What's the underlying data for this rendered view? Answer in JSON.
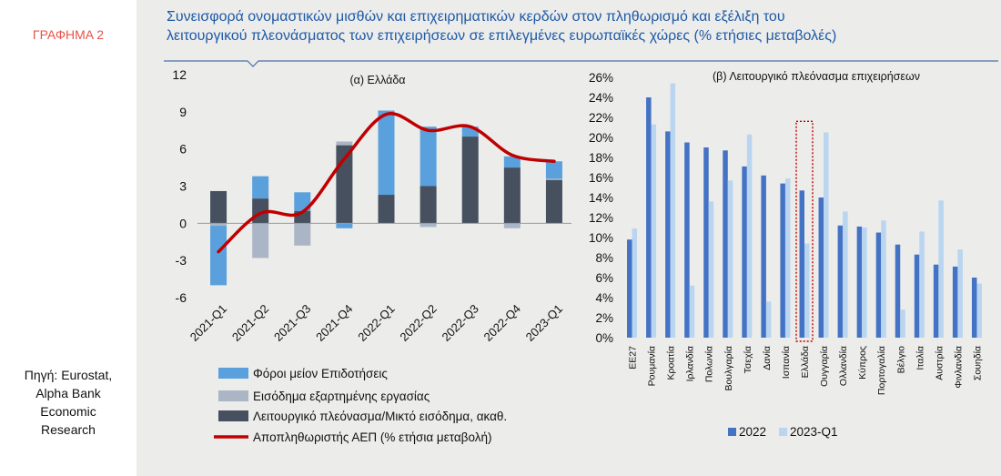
{
  "figure_label": "ΓΡΑΦΗΜΑ 2",
  "title_line1": "Συνεισφορά ονομαστικών μισθών και επιχειρηματικών κερδών στον πληθωρισμό και εξέλιξη του",
  "title_line2": "λειτουργικού πλεονάσματος των επιχειρήσεων σε επιλεγμένες ευρωπαϊκές χώρες (% ετήσιες μεταβολές)",
  "source_lines": [
    "Πηγή: Eurostat,",
    "Alpha Bank",
    "Economic",
    "Research"
  ],
  "colors": {
    "taxes": "#5aa0dc",
    "employee": "#aab6c6",
    "surplus": "#46505f",
    "deflator": "#c00000",
    "bar2022": "#4472c4",
    "bar2023": "#b9d5f0",
    "highlight": "#c00000",
    "title": "#1e5aa6",
    "label": "#e8534a"
  },
  "chart_data": [
    {
      "type": "bar",
      "title": "(α) Ελλάδα",
      "stacked": true,
      "categories": [
        "2021-Q1",
        "2021-Q2",
        "2021-Q3",
        "2021-Q4",
        "2022-Q1",
        "2022-Q2",
        "2022-Q3",
        "2022-Q4",
        "2023-Q1"
      ],
      "yticks": [
        "12",
        "9",
        "6",
        "3",
        "0",
        "-3",
        "-6"
      ],
      "ylim": [
        -6,
        12
      ],
      "series": [
        {
          "name": "Φόροι μείον Επιδοτήσεις",
          "kind": "bar",
          "values": [
            -4.8,
            1.8,
            1.5,
            0.0,
            6.8,
            4.8,
            0.8,
            0.9,
            1.4
          ]
        },
        {
          "name": "Εισόδημα εξαρτημένης εργασίας",
          "kind": "bar",
          "values": [
            -0.2,
            -2.8,
            -1.8,
            0.3,
            0.0,
            -0.3,
            0.0,
            -0.4,
            0.1
          ]
        },
        {
          "name": "Λειτουργικό πλεόνασμα/Μικτό εισόδημα, ακαθ.",
          "kind": "bar",
          "values": [
            2.6,
            2.0,
            1.0,
            6.3,
            2.3,
            3.0,
            7.0,
            4.5,
            3.5
          ],
          "extra": [
            0,
            0,
            0,
            0,
            0,
            0,
            0,
            0,
            0
          ]
        },
        {
          "name": "Αποπληθωριστής ΑΕΠ (% ετήσια μεταβολή)",
          "kind": "line",
          "values": [
            -2.3,
            0.8,
            0.9,
            5.2,
            8.8,
            7.5,
            7.8,
            5.5,
            5.0
          ]
        }
      ],
      "neg_surplus_q4": -0.4
    },
    {
      "type": "bar",
      "title": "(β) Λειτουργικό πλεόνασμα επιχειρήσεων",
      "categories": [
        "ΕΕ27",
        "Ρουμανία",
        "Κροατία",
        "Ιρλανδία",
        "Πολωνία",
        "Βουλγαρία",
        "Τσεχία",
        "Δανία",
        "Ισπανία",
        "Ελλάδα",
        "Ουγγαρία",
        "Ολλανδία",
        "Κύπρος",
        "Πορτογαλία",
        "Βέλγιο",
        "Ιταλία",
        "Αυστρία",
        "Φινλανδία",
        "Σουηδία"
      ],
      "yticks": [
        "26%",
        "24%",
        "22%",
        "20%",
        "18%",
        "16%",
        "14%",
        "12%",
        "10%",
        "8%",
        "6%",
        "4%",
        "2%",
        "0%"
      ],
      "ylim": [
        0,
        26
      ],
      "highlight_category": "Ελλάδα",
      "series": [
        {
          "name": "2022",
          "values": [
            9.8,
            24.0,
            20.6,
            19.5,
            19.0,
            18.7,
            17.1,
            16.2,
            15.4,
            14.7,
            14.0,
            11.2,
            11.1,
            10.5,
            9.3,
            8.3,
            7.3,
            7.1,
            6.0
          ]
        },
        {
          "name": "2023-Q1",
          "values": [
            10.9,
            21.3,
            25.4,
            5.2,
            13.6,
            15.7,
            20.3,
            3.6,
            15.9,
            9.4,
            20.5,
            12.6,
            11.0,
            11.7,
            2.8,
            10.6,
            13.7,
            8.8,
            5.4
          ]
        }
      ]
    }
  ]
}
